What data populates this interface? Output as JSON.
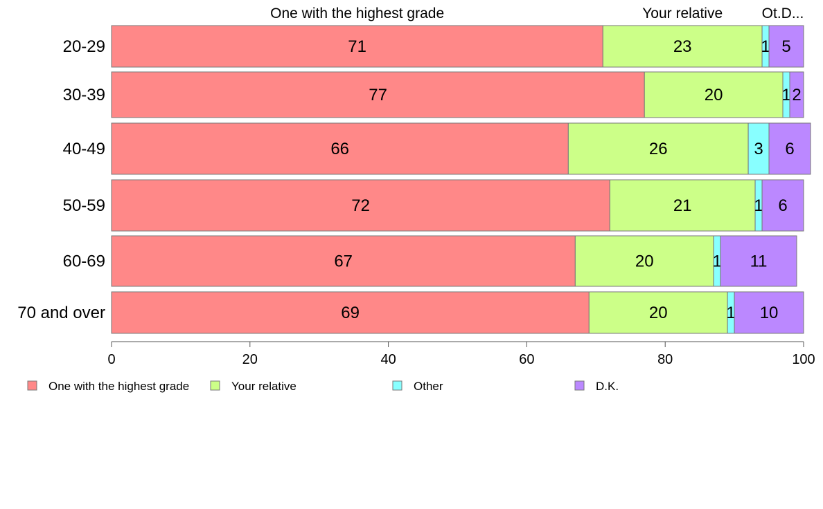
{
  "chart_data": {
    "type": "bar",
    "orientation": "horizontal",
    "stacked": true,
    "categories": [
      "20-29",
      "30-39",
      "40-49",
      "50-59",
      "60-69",
      "70 and over"
    ],
    "series": [
      {
        "name": "One with the highest grade",
        "color": "#ff8888",
        "values": [
          71,
          77,
          66,
          72,
          67,
          69
        ]
      },
      {
        "name": "Your relative",
        "color": "#ccff88",
        "values": [
          23,
          20,
          26,
          21,
          20,
          20
        ]
      },
      {
        "name": "Other",
        "color": "#88ffff",
        "values": [
          1,
          1,
          3,
          1,
          1,
          1
        ]
      },
      {
        "name": "D.K.",
        "color": "#bb88ff",
        "values": [
          5,
          2,
          6,
          6,
          11,
          10
        ]
      }
    ],
    "top_labels": [
      "One with the highest grade",
      "Your relative",
      "Ot.D..."
    ],
    "x_ticks": [
      "0",
      "20",
      "40",
      "60",
      "80",
      "100"
    ],
    "xlim": [
      0,
      100
    ],
    "legend_position": "bottom-left",
    "grid": false
  }
}
